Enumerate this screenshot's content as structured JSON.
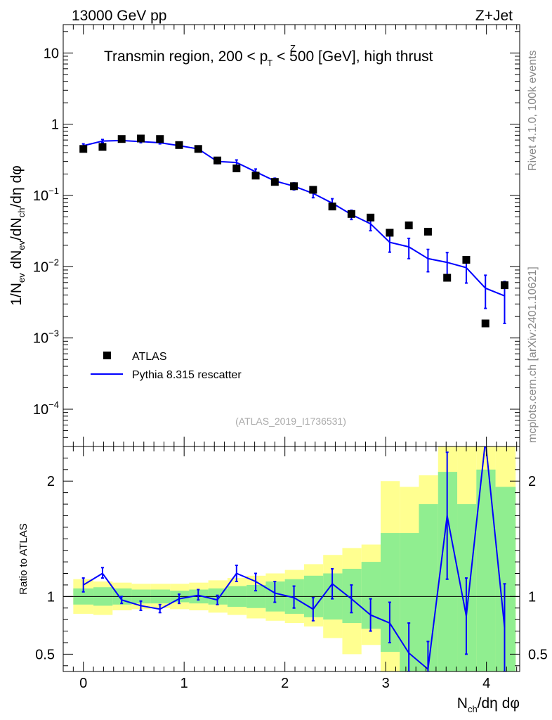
{
  "header": {
    "left_label": "13000 GeV pp",
    "right_label": "Z+Jet"
  },
  "side_labels": {
    "rivet": "Rivet 4.1.0,  100k events",
    "mcplots": "mcplots.cern.ch [arXiv:2401.10621]"
  },
  "colors": {
    "data": "#000000",
    "mc": "#0000ff",
    "band_inner": "#90ee90",
    "band_outer": "#ffff90"
  },
  "chart_data": [
    {
      "type": "scatter",
      "panel": "main",
      "title": "Transmin region, 200 < p_T^Z < 500 [GeV], high thrust",
      "title_parts": {
        "pre": "Transmin region, 200 < p",
        "sup": "Z",
        "sub": "T",
        "post": " < 500 [GeV], high thrust"
      },
      "ylabel": "1/N_ev dN_ev/dN_ch/dη dφ",
      "ylabel_parts": {
        "a": "1/N",
        "a_sub": "ev",
        "b": " dN",
        "b_sub": "ev",
        "c": "/dN",
        "c_sub": "ch",
        "d": "/dη dφ"
      },
      "yscale": "log",
      "ylim": [
        3e-05,
        25
      ],
      "xlim": [
        -0.2,
        4.33
      ],
      "y_ticks": [
        {
          "value": 10,
          "base": "10",
          "exp": ""
        },
        {
          "value": 1,
          "base": "1",
          "exp": ""
        },
        {
          "value": 0.1,
          "base": "10",
          "exp": "−1"
        },
        {
          "value": 0.01,
          "base": "10",
          "exp": "−2"
        },
        {
          "value": 0.001,
          "base": "10",
          "exp": "−3"
        },
        {
          "value": 0.0001,
          "base": "10",
          "exp": "−4"
        }
      ],
      "legend_position": "lower-left",
      "watermark": "(ATLAS_2019_I1736531)",
      "series": [
        {
          "name": "ATLAS",
          "style": "markers",
          "x": [
            0.0,
            0.19,
            0.38,
            0.57,
            0.76,
            0.95,
            1.14,
            1.33,
            1.52,
            1.71,
            1.9,
            2.09,
            2.28,
            2.47,
            2.66,
            2.85,
            3.04,
            3.23,
            3.42,
            3.61,
            3.8,
            3.99,
            4.18
          ],
          "y": [
            0.45,
            0.48,
            0.62,
            0.63,
            0.62,
            0.51,
            0.45,
            0.31,
            0.24,
            0.19,
            0.155,
            0.135,
            0.12,
            0.07,
            0.055,
            0.049,
            0.03,
            0.038,
            0.031,
            0.007,
            0.0125,
            0.0016,
            0.0055
          ]
        },
        {
          "name": "Pythia 8.315 rescatter",
          "style": "line",
          "x": [
            0.0,
            0.19,
            0.38,
            0.57,
            0.76,
            0.95,
            1.14,
            1.33,
            1.52,
            1.71,
            1.9,
            2.09,
            2.28,
            2.47,
            2.66,
            2.85,
            3.04,
            3.23,
            3.42,
            3.61,
            3.8,
            3.99,
            4.18
          ],
          "y": [
            0.5,
            0.58,
            0.59,
            0.57,
            0.55,
            0.5,
            0.45,
            0.3,
            0.29,
            0.215,
            0.16,
            0.135,
            0.107,
            0.078,
            0.054,
            0.04,
            0.022,
            0.019,
            0.013,
            0.0115,
            0.0097,
            0.005,
            0.0039
          ],
          "err_lo": [
            0.47,
            0.55,
            0.57,
            0.55,
            0.53,
            0.48,
            0.43,
            0.28,
            0.265,
            0.195,
            0.145,
            0.12,
            0.093,
            0.066,
            0.046,
            0.032,
            0.016,
            0.013,
            0.0085,
            0.0072,
            0.0059,
            0.0026,
            0.0016
          ],
          "err_hi": [
            0.53,
            0.61,
            0.61,
            0.59,
            0.57,
            0.52,
            0.47,
            0.32,
            0.315,
            0.235,
            0.175,
            0.15,
            0.121,
            0.09,
            0.062,
            0.048,
            0.028,
            0.025,
            0.0175,
            0.0158,
            0.0135,
            0.0076,
            0.0062
          ]
        }
      ]
    },
    {
      "type": "line",
      "panel": "ratio",
      "ylabel": "Ratio to ATLAS",
      "xlabel": "N_ch/dη dφ",
      "xlabel_parts": {
        "a": "N",
        "a_sub": "ch",
        "b": "/dη dφ"
      },
      "ylim": [
        0.35,
        2.3
      ],
      "xlim": [
        -0.2,
        4.33
      ],
      "x_ticks": [
        0,
        1,
        2,
        3,
        4
      ],
      "x_tick_labels": [
        "0",
        "1",
        "2",
        "3",
        "4"
      ],
      "y_ticks": [
        0.5,
        1,
        2
      ],
      "y_tick_labels": [
        "0.5",
        "1",
        "2"
      ],
      "reference_line": 1,
      "bands": {
        "edges": [
          -0.1,
          0.1,
          0.29,
          0.48,
          0.67,
          0.86,
          1.05,
          1.24,
          1.43,
          1.62,
          1.81,
          2.0,
          2.19,
          2.38,
          2.57,
          2.76,
          2.95,
          3.14,
          3.33,
          3.52,
          3.71,
          3.9,
          4.09,
          4.29
        ],
        "inner_lo": [
          0.93,
          0.92,
          0.93,
          0.94,
          0.94,
          0.95,
          0.94,
          0.93,
          0.91,
          0.9,
          0.87,
          0.85,
          0.82,
          0.8,
          0.77,
          0.72,
          0.52,
          0.35,
          0.35,
          0.35,
          0.35,
          0.35,
          0.35
        ],
        "inner_hi": [
          1.07,
          1.08,
          1.07,
          1.06,
          1.06,
          1.05,
          1.06,
          1.07,
          1.09,
          1.1,
          1.13,
          1.15,
          1.18,
          1.2,
          1.24,
          1.3,
          1.55,
          1.55,
          1.8,
          2.08,
          1.8,
          2.1,
          1.95
        ],
        "outer_lo": [
          0.85,
          0.84,
          0.88,
          0.89,
          0.9,
          0.89,
          0.88,
          0.86,
          0.84,
          0.81,
          0.79,
          0.77,
          0.74,
          0.64,
          0.5,
          0.58,
          0.35,
          0.35,
          0.35,
          0.35,
          0.35,
          0.35,
          0.35
        ],
        "outer_hi": [
          1.15,
          1.13,
          1.12,
          1.11,
          1.11,
          1.11,
          1.12,
          1.14,
          1.16,
          1.18,
          1.2,
          1.23,
          1.28,
          1.36,
          1.42,
          1.45,
          2.0,
          1.95,
          2.05,
          2.3,
          2.3,
          2.3,
          2.3
        ]
      },
      "series": [
        {
          "name": "Pythia 8.315 rescatter / ATLAS",
          "x": [
            0.0,
            0.19,
            0.38,
            0.57,
            0.76,
            0.95,
            1.14,
            1.33,
            1.52,
            1.71,
            1.9,
            2.09,
            2.28,
            2.47,
            2.66,
            2.85,
            3.04,
            3.23,
            3.42,
            3.61,
            3.8,
            3.99,
            4.18
          ],
          "y": [
            1.1,
            1.2,
            0.97,
            0.92,
            0.89,
            0.98,
            1.01,
            0.97,
            1.2,
            1.13,
            1.03,
            0.99,
            0.89,
            1.11,
            0.98,
            0.84,
            0.77,
            0.51,
            0.37,
            1.7,
            0.83,
            2.35,
            0.73
          ],
          "err_lo": [
            1.04,
            1.16,
            0.94,
            0.88,
            0.86,
            0.94,
            0.97,
            0.93,
            1.13,
            1.05,
            0.95,
            0.9,
            0.79,
            0.98,
            0.86,
            0.7,
            0.6,
            0.35,
            0.35,
            1.15,
            0.5,
            2.3,
            0.35
          ],
          "err_hi": [
            1.16,
            1.25,
            1.0,
            0.96,
            0.93,
            1.02,
            1.06,
            1.01,
            1.27,
            1.2,
            1.13,
            1.09,
            0.99,
            1.24,
            1.1,
            0.98,
            0.95,
            0.77,
            0.61,
            2.25,
            1.16,
            2.3,
            1.11
          ]
        }
      ]
    }
  ]
}
